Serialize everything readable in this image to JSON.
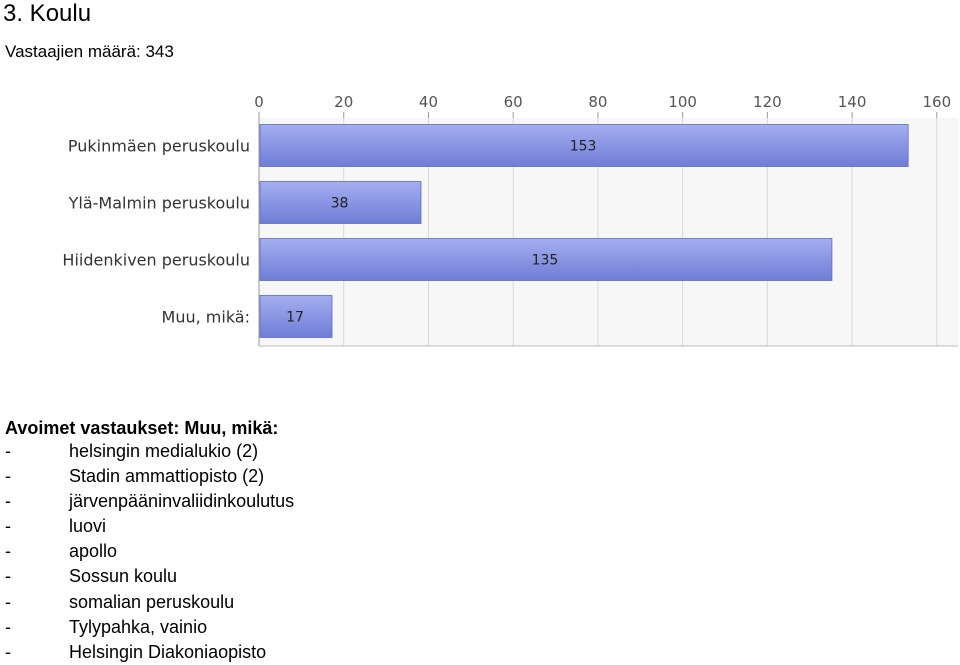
{
  "page": {
    "title": "3. Koulu",
    "respondents": "Vastaajien määrä: 343"
  },
  "chart_data": {
    "type": "bar",
    "orientation": "horizontal",
    "categories": [
      "Pukinmäen peruskoulu",
      "Ylä-Malmin peruskoulu",
      "Hiidenkiven peruskoulu",
      "Muu, mikä:"
    ],
    "values": [
      153,
      38,
      135,
      17
    ],
    "xlim": [
      0,
      165
    ],
    "xticks": [
      0,
      20,
      40,
      60,
      80,
      100,
      120,
      140,
      160
    ],
    "axis_position": "top",
    "grid": true,
    "colors": {
      "bar_top": "#a4aef0",
      "bar_bottom": "#6f7dd6",
      "bar_edge": "#5d6bc4",
      "grid": "#d8d8d8",
      "plot_bg": "#f7f7f7"
    }
  },
  "answers": {
    "heading": "Avoimet vastaukset: Muu, mikä:",
    "dash": "-",
    "items": [
      "helsingin medialukio (2)",
      "Stadin ammattiopisto (2)",
      "järvenpääninvaliidinkoulutus",
      "luovi",
      "apollo",
      "Sossun koulu",
      "somalian peruskoulu",
      "Tylypahka, vainio",
      "Helsingin Diakoniaopisto"
    ]
  }
}
